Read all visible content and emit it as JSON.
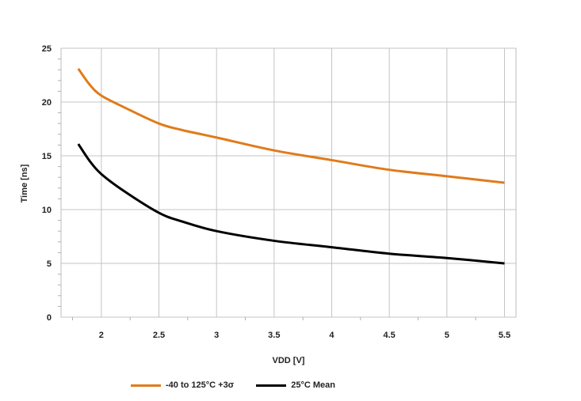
{
  "chart_data": {
    "type": "line",
    "xlabel": "VDD [V]",
    "ylabel": "Time [ns]",
    "xlim": [
      1.65,
      5.6
    ],
    "ylim": [
      0,
      25
    ],
    "x_ticks": [
      "2",
      "2.5",
      "3",
      "3.5",
      "4",
      "4.5",
      "5",
      "5.5"
    ],
    "y_ticks": [
      "0",
      "5",
      "10",
      "15",
      "20",
      "25"
    ],
    "grid": true,
    "legend_position": "bottom",
    "series": [
      {
        "name": "-40 to 125°C +3σ",
        "color": "#e07b1a",
        "x": [
          1.8,
          1.9,
          2.0,
          2.2,
          2.5,
          2.7,
          3.0,
          3.5,
          4.0,
          4.5,
          5.0,
          5.5
        ],
        "y": [
          23.1,
          21.6,
          20.6,
          19.5,
          18.0,
          17.4,
          16.7,
          15.5,
          14.6,
          13.7,
          13.1,
          12.5
        ]
      },
      {
        "name": "25°C Mean",
        "color": "#000000",
        "x": [
          1.8,
          1.9,
          2.0,
          2.2,
          2.5,
          2.7,
          3.0,
          3.5,
          4.0,
          4.5,
          5.0,
          5.5
        ],
        "y": [
          16.1,
          14.5,
          13.3,
          11.7,
          9.7,
          8.9,
          8.0,
          7.1,
          6.5,
          5.9,
          5.5,
          5.0
        ]
      }
    ]
  }
}
